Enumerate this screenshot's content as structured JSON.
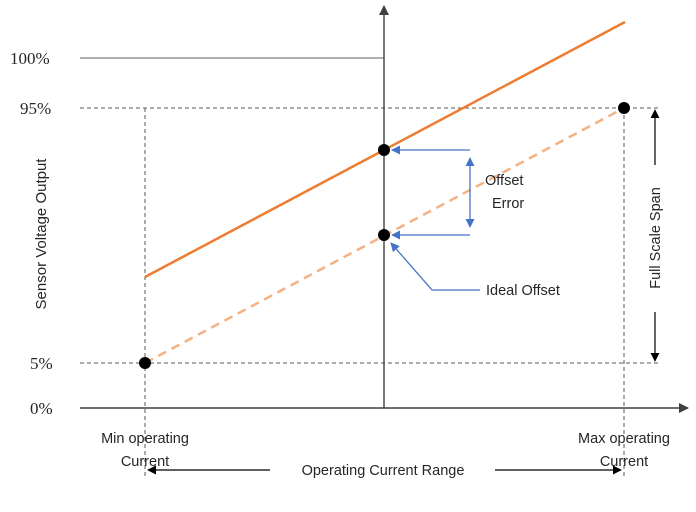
{
  "y_axis": {
    "title": "Sensor Voltage Output",
    "ticks": {
      "p100": "100%",
      "p95": "95%",
      "p5": "5%",
      "p0": "0%"
    }
  },
  "x_labels": {
    "min_line1": "Min operating",
    "min_line2": "Current",
    "max_line1": "Max operating",
    "max_line2": "Current"
  },
  "annotations": {
    "offset_error_line1": "Offset",
    "offset_error_line2": "Error",
    "ideal_offset": "Ideal Offset",
    "full_scale_span": "Full Scale Span",
    "operating_current_range": "Operating Current Range"
  },
  "colors": {
    "actual_line": "#ED7D31",
    "ideal_line": "#F4B183",
    "annotation_arrow": "#4472C4",
    "axis": "#595959",
    "guide": "#595959",
    "point": "#000000"
  }
}
